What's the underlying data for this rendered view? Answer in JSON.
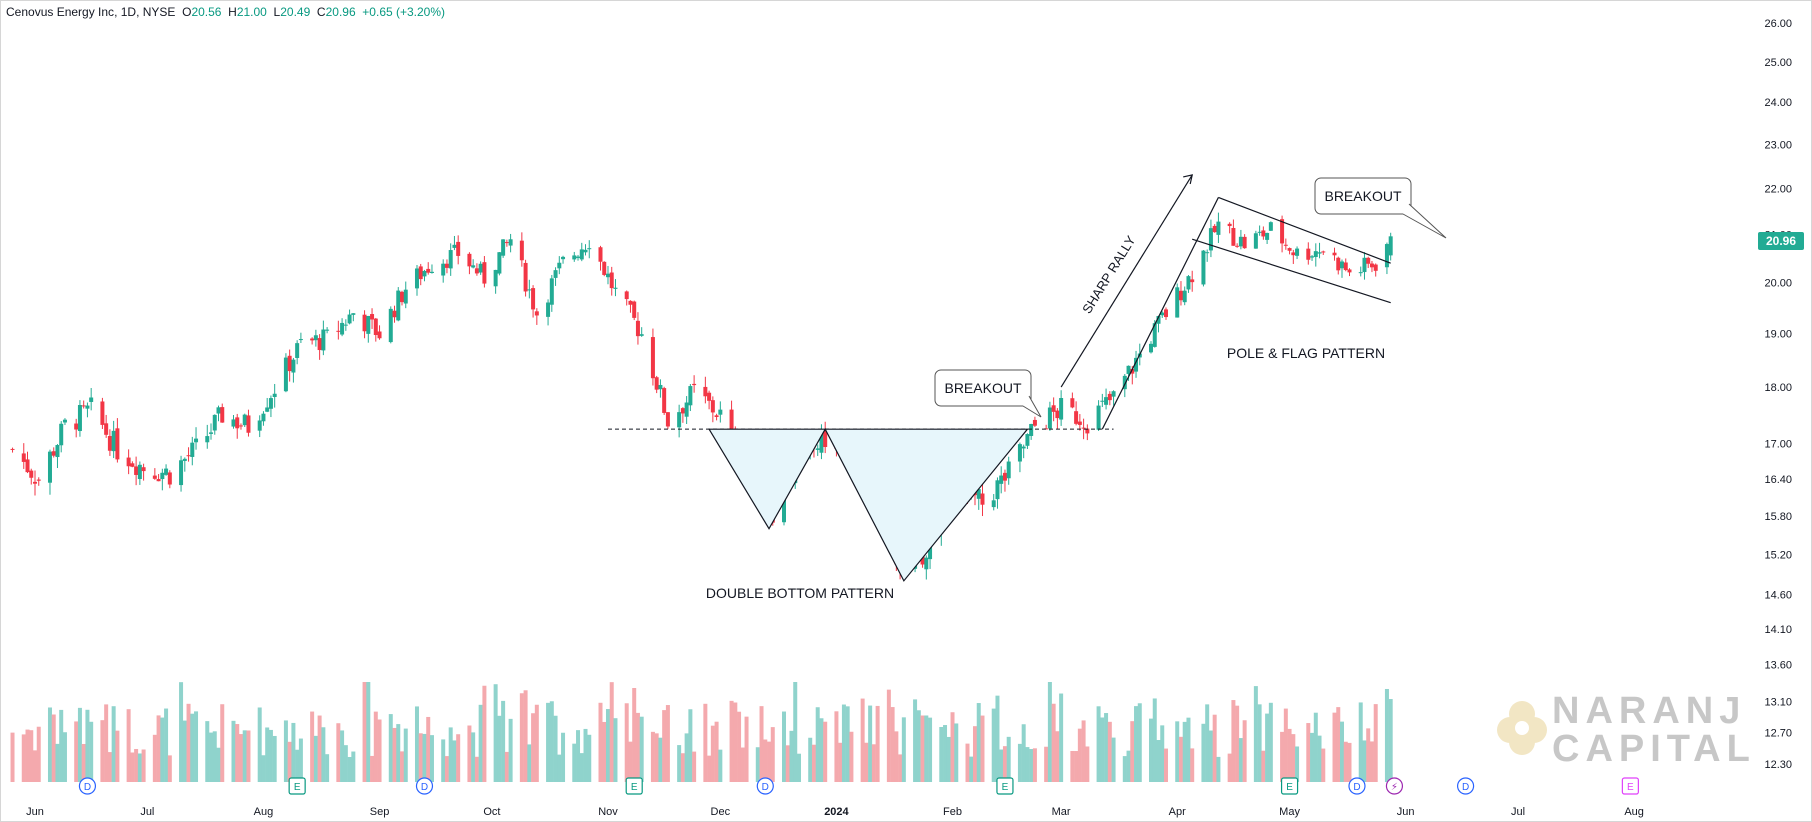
{
  "header": {
    "symbol": "Cenovus Energy Inc",
    "interval": "1D",
    "exchange": "NYSE",
    "open_label": "O",
    "open": "20.56",
    "high_label": "H",
    "high": "21.00",
    "low_label": "L",
    "low": "20.49",
    "close_label": "C",
    "close": "20.96",
    "change": "+0.65 (+3.20%)"
  },
  "last_price_tag": "20.96",
  "watermark": {
    "line1": "NARANJ",
    "line2": "CAPITAL"
  },
  "colors": {
    "up": "#22ab94",
    "down": "#f23645",
    "vol_up": "#8fd3cc",
    "vol_down": "#f4a9ad",
    "pattern_fill": "#e7f6fb",
    "line": "#131722"
  },
  "chart_data": {
    "type": "candlestick",
    "title": "Cenovus Energy Inc, 1D, NYSE",
    "y_axis": {
      "side": "right",
      "scale": "log",
      "ticks": [
        "26.00",
        "25.00",
        "24.00",
        "23.00",
        "22.00",
        "21.00",
        "20.00",
        "19.00",
        "18.00",
        "17.00",
        "16.40",
        "15.80",
        "15.20",
        "14.60",
        "14.10",
        "13.60",
        "13.10",
        "12.70",
        "12.30"
      ]
    },
    "x_axis": {
      "ticks": [
        "Jun",
        "Jul",
        "Aug",
        "Sep",
        "Oct",
        "Nov",
        "Dec",
        "2024",
        "Feb",
        "Mar",
        "Apr",
        "May",
        "Jun",
        "Jul",
        "Aug"
      ]
    },
    "price_path": [
      {
        "date": "2023-05-26",
        "close": 16.9
      },
      {
        "date": "2023-06-02",
        "close": 16.4
      },
      {
        "date": "2023-06-09",
        "close": 17.3
      },
      {
        "date": "2023-06-16",
        "close": 17.6
      },
      {
        "date": "2023-06-23",
        "close": 16.9
      },
      {
        "date": "2023-06-30",
        "close": 16.6
      },
      {
        "date": "2023-07-07",
        "close": 16.5
      },
      {
        "date": "2023-07-14",
        "close": 16.9
      },
      {
        "date": "2023-07-21",
        "close": 17.5
      },
      {
        "date": "2023-07-28",
        "close": 17.3
      },
      {
        "date": "2023-08-04",
        "close": 18.0
      },
      {
        "date": "2023-08-11",
        "close": 18.8
      },
      {
        "date": "2023-08-18",
        "close": 18.9
      },
      {
        "date": "2023-08-25",
        "close": 19.4
      },
      {
        "date": "2023-09-01",
        "close": 19.0
      },
      {
        "date": "2023-09-08",
        "close": 19.9
      },
      {
        "date": "2023-09-15",
        "close": 20.4
      },
      {
        "date": "2023-09-22",
        "close": 20.6
      },
      {
        "date": "2023-09-29",
        "close": 20.1
      },
      {
        "date": "2023-10-06",
        "close": 20.9
      },
      {
        "date": "2023-10-13",
        "close": 19.4
      },
      {
        "date": "2023-10-20",
        "close": 20.4
      },
      {
        "date": "2023-10-27",
        "close": 20.9
      },
      {
        "date": "2023-11-03",
        "close": 19.8
      },
      {
        "date": "2023-11-10",
        "close": 19.0
      },
      {
        "date": "2023-11-17",
        "close": 17.4
      },
      {
        "date": "2023-11-24",
        "close": 17.9
      },
      {
        "date": "2023-12-01",
        "close": 17.5
      },
      {
        "date": "2023-12-08",
        "close": 16.4
      },
      {
        "date": "2023-12-15",
        "close": 15.9
      },
      {
        "date": "2023-12-22",
        "close": 16.7
      },
      {
        "date": "2023-12-29",
        "close": 17.1
      },
      {
        "date": "2024-01-05",
        "close": 16.5
      },
      {
        "date": "2024-01-12",
        "close": 16.1
      },
      {
        "date": "2024-01-19",
        "close": 14.9
      },
      {
        "date": "2024-01-26",
        "close": 15.4
      },
      {
        "date": "2024-02-02",
        "close": 16.2
      },
      {
        "date": "2024-02-09",
        "close": 16.0
      },
      {
        "date": "2024-02-16",
        "close": 16.5
      },
      {
        "date": "2024-02-23",
        "close": 17.3
      },
      {
        "date": "2024-03-01",
        "close": 17.6
      },
      {
        "date": "2024-03-08",
        "close": 17.4
      },
      {
        "date": "2024-03-15",
        "close": 17.8
      },
      {
        "date": "2024-03-22",
        "close": 18.6
      },
      {
        "date": "2024-03-29",
        "close": 19.4
      },
      {
        "date": "2024-04-05",
        "close": 20.2
      },
      {
        "date": "2024-04-12",
        "close": 21.2
      },
      {
        "date": "2024-04-19",
        "close": 20.8
      },
      {
        "date": "2024-04-26",
        "close": 21.1
      },
      {
        "date": "2024-05-03",
        "close": 20.6
      },
      {
        "date": "2024-05-10",
        "close": 20.7
      },
      {
        "date": "2024-05-17",
        "close": 20.2
      },
      {
        "date": "2024-05-24",
        "close": 20.4
      },
      {
        "date": "2024-05-28",
        "close": 20.96
      }
    ],
    "annotations": [
      "BREAKOUT",
      "DOUBLE BOTTOM PATTERN",
      "SHARP RALLY",
      "POLE & FLAG PATTERN",
      "BREAKOUT"
    ],
    "event_markers": [
      "D",
      "E",
      "D",
      "E",
      "D",
      "E",
      "E",
      "D",
      "⚡",
      "D",
      "E"
    ]
  }
}
